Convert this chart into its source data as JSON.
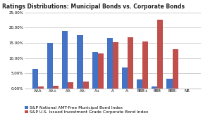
{
  "title": "Ratings Distributions: Municipal Bonds vs. Corporate Bonds",
  "categories": [
    "AAA",
    "AA+",
    "AA",
    "AA-",
    "A+",
    "A",
    "A-",
    "BBB+",
    "BBB",
    "BBB-",
    "NR"
  ],
  "muni_values": [
    6.5,
    15.0,
    19.0,
    17.5,
    12.0,
    16.5,
    6.8,
    3.0,
    0.7,
    3.3,
    0.1
  ],
  "corp_values": [
    0.6,
    1.0,
    2.0,
    2.2,
    11.5,
    15.2,
    16.8,
    15.5,
    22.5,
    13.0,
    0.1
  ],
  "muni_color": "#4472C4",
  "corp_color": "#C0504D",
  "ylim": [
    0,
    25
  ],
  "yticks": [
    0,
    5,
    10,
    15,
    20,
    25
  ],
  "ytick_labels": [
    "0.00%",
    "5.00%",
    "10.00%",
    "15.00%",
    "20.00%",
    "25.00%"
  ],
  "muni_label": "S&P National AMT-Free Municipal Bond Index",
  "corp_label": "S&P U.S. Issued Investment Grade Corporate Bond Index",
  "bg_color": "#FFFFFF",
  "grid_color": "#BBBBBB",
  "title_fontsize": 5.5,
  "legend_fontsize": 4.2,
  "tick_fontsize": 4.0,
  "bar_width": 0.38
}
